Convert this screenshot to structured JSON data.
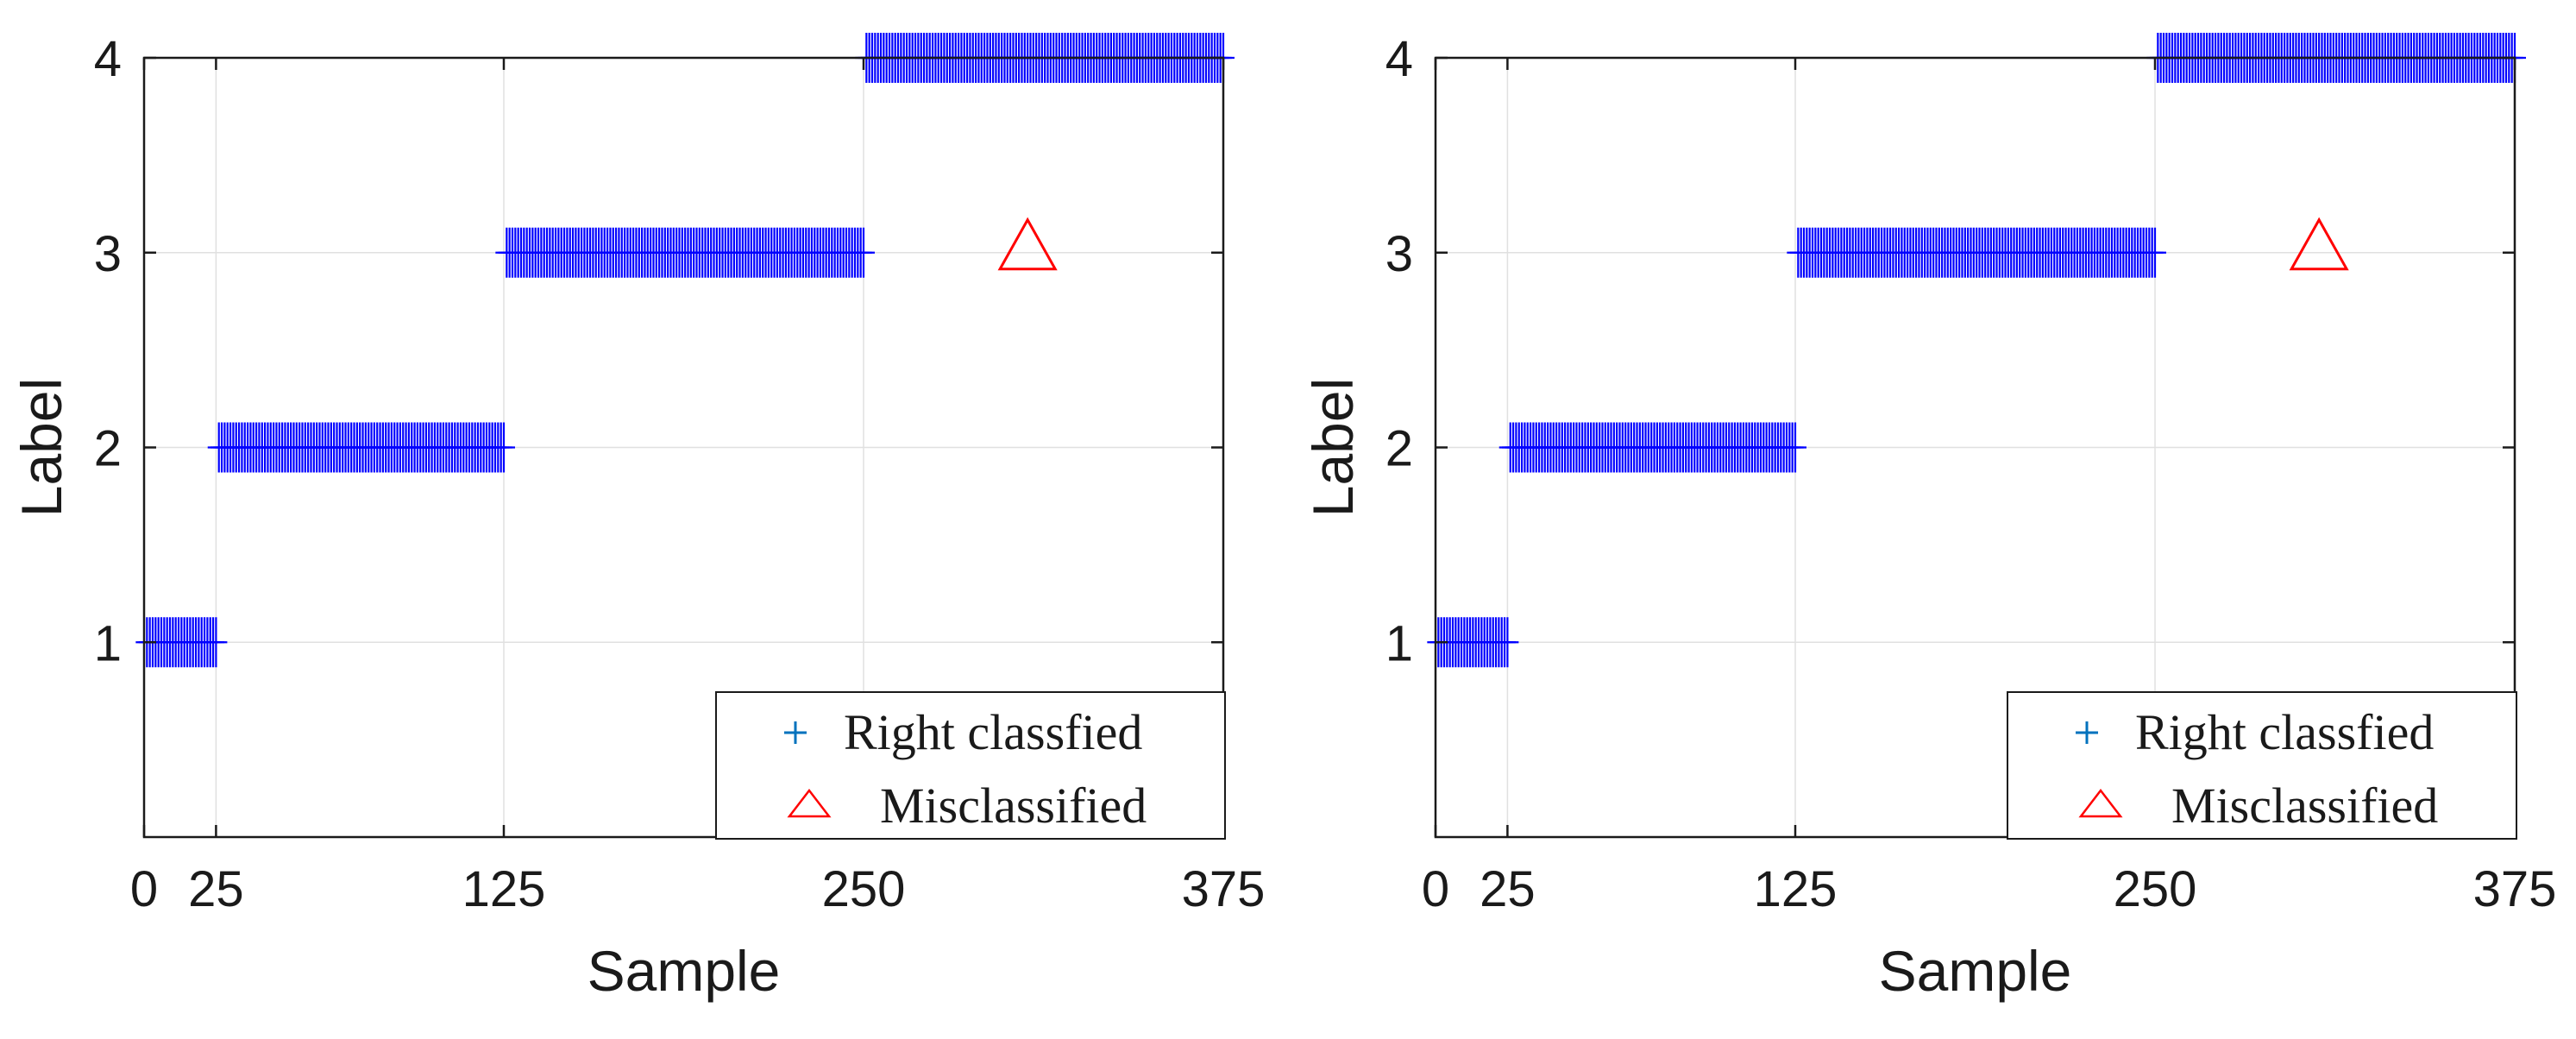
{
  "chart_data": [
    {
      "type": "scatter",
      "panel": "left",
      "xlabel": "Sample",
      "ylabel": "Label",
      "xlim": [
        0,
        375
      ],
      "ylim": [
        0,
        4
      ],
      "xticks": [
        0,
        25,
        125,
        250,
        375
      ],
      "yticks": [
        1,
        2,
        3,
        4
      ],
      "grid": true,
      "legend_position": "bottom-right",
      "series": [
        {
          "name": "Right classfied",
          "marker": "plus",
          "color": "#0000ff",
          "segments": [
            {
              "label": 1,
              "x_start": 1,
              "x_end": 25
            },
            {
              "label": 2,
              "x_start": 26,
              "x_end": 125
            },
            {
              "label": 3,
              "x_start": 126,
              "x_end": 250
            },
            {
              "label": 4,
              "x_start": 251,
              "x_end": 375
            }
          ]
        },
        {
          "name": "Misclassified",
          "marker": "triangle",
          "color": "#ff0000",
          "points": [
            {
              "x": 307,
              "y": 3
            }
          ]
        }
      ]
    },
    {
      "type": "scatter",
      "panel": "right",
      "xlabel": "Sample",
      "ylabel": "Label",
      "xlim": [
        0,
        375
      ],
      "ylim": [
        0,
        4
      ],
      "xticks": [
        0,
        25,
        125,
        250,
        375
      ],
      "yticks": [
        1,
        2,
        3,
        4
      ],
      "grid": true,
      "legend_position": "bottom-right",
      "series": [
        {
          "name": "Right classfied",
          "marker": "plus",
          "color": "#0000ff",
          "segments": [
            {
              "label": 1,
              "x_start": 1,
              "x_end": 25
            },
            {
              "label": 2,
              "x_start": 26,
              "x_end": 125
            },
            {
              "label": 3,
              "x_start": 126,
              "x_end": 250
            },
            {
              "label": 4,
              "x_start": 251,
              "x_end": 375
            }
          ]
        },
        {
          "name": "Misclassified",
          "marker": "triangle",
          "color": "#ff0000",
          "points": [
            {
              "x": 307,
              "y": 3
            }
          ]
        }
      ]
    }
  ],
  "colors": {
    "axis": "#1a1a1a",
    "grid": "#e0e0e0",
    "correct_marker": "#0000ff",
    "legend_plus": "#0072bd",
    "wrong_marker": "#ff0000"
  }
}
